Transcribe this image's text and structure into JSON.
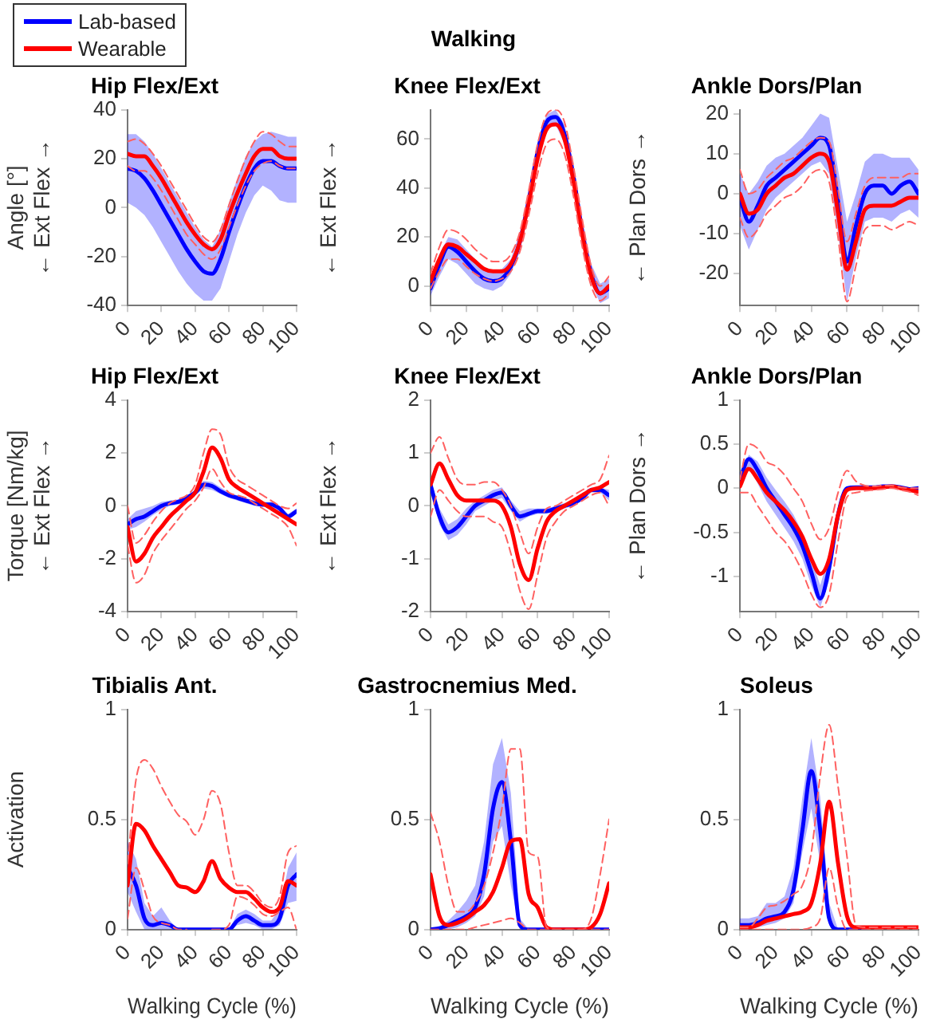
{
  "chart_data": [
    {
      "type": "line",
      "title": "Hip Flex/Ext",
      "ylabel": "Angle [°]\n← Ext Flex →",
      "x": [
        0,
        5,
        10,
        15,
        20,
        25,
        30,
        35,
        40,
        45,
        50,
        55,
        60,
        65,
        70,
        75,
        80,
        85,
        90,
        95,
        100
      ],
      "xlim": [
        0,
        100
      ],
      "xticks": [
        0,
        20,
        40,
        60,
        80,
        100
      ],
      "ylim": [
        -40,
        40
      ],
      "yticks": [
        -40,
        -20,
        0,
        20,
        40
      ],
      "legend": "top left",
      "marker": "none",
      "series": [
        {
          "name": "Lab-based",
          "color": "#0000ff",
          "values": [
            16,
            15,
            12,
            7,
            1,
            -5,
            -11,
            -17,
            -22,
            -26,
            -27,
            -21,
            -10,
            0,
            9,
            16,
            19,
            19,
            17,
            16,
            16
          ],
          "lower": [
            2,
            0,
            -3,
            -8,
            -14,
            -20,
            -26,
            -31,
            -35,
            -38,
            -38,
            -33,
            -22,
            -11,
            -2,
            5,
            9,
            7,
            3,
            2,
            2
          ],
          "upper": [
            30,
            30,
            27,
            22,
            16,
            10,
            4,
            -2,
            -8,
            -13,
            -16,
            -9,
            2,
            12,
            21,
            27,
            30,
            31,
            30,
            29,
            29
          ]
        },
        {
          "name": "Wearable",
          "color": "#ff0000",
          "values": [
            22,
            21,
            21,
            17,
            12,
            6,
            0,
            -6,
            -11,
            -15,
            -17,
            -13,
            -3,
            6,
            14,
            21,
            24,
            24,
            21,
            20,
            20
          ]
        },
        {
          "color": "#ff6060",
          "line_style": "dashed",
          "values": [
            27,
            28,
            26,
            22,
            17,
            11,
            5,
            -1,
            -7,
            -12,
            -14,
            -9,
            1,
            11,
            20,
            27,
            31,
            30,
            27,
            25,
            25
          ]
        },
        {
          "color": "#ff6060",
          "line_style": "dashed",
          "values": [
            17,
            15,
            15,
            12,
            7,
            1,
            -5,
            -11,
            -15,
            -19,
            -21,
            -17,
            -8,
            1,
            9,
            15,
            18,
            19,
            17,
            16,
            16
          ]
        }
      ]
    },
    {
      "type": "line",
      "title": "Knee Flex/Ext",
      "ylabel": "← Ext Flex →",
      "annotations": [
        "Walking"
      ],
      "x": [
        0,
        5,
        10,
        15,
        20,
        25,
        30,
        35,
        40,
        45,
        50,
        55,
        60,
        65,
        70,
        75,
        80,
        85,
        90,
        95,
        100
      ],
      "xlim": [
        0,
        100
      ],
      "xticks": [
        0,
        20,
        40,
        60,
        80,
        100
      ],
      "ylim": [
        -8,
        72
      ],
      "yticks": [
        0,
        20,
        40,
        60
      ],
      "marker": "none",
      "series": [
        {
          "color": "#0000ff",
          "values": [
            -1,
            9,
            16,
            14,
            10,
            6,
            3,
            2,
            3,
            8,
            18,
            35,
            55,
            67,
            69,
            62,
            45,
            22,
            5,
            -3,
            -1
          ],
          "lower": [
            -4,
            4,
            11,
            9,
            5,
            1,
            -1,
            -2,
            0,
            5,
            14,
            31,
            51,
            64,
            66,
            58,
            40,
            17,
            1,
            -7,
            -5
          ],
          "upper": [
            3,
            13,
            20,
            19,
            15,
            11,
            7,
            6,
            7,
            11,
            22,
            39,
            59,
            70,
            72,
            66,
            50,
            27,
            9,
            1,
            3
          ]
        },
        {
          "color": "#ff0000",
          "values": [
            2,
            11,
            17,
            16,
            13,
            10,
            7,
            6,
            6,
            9,
            18,
            34,
            52,
            64,
            66,
            60,
            43,
            21,
            4,
            -3,
            0
          ]
        },
        {
          "color": "#ff6060",
          "line_style": "dashed",
          "values": [
            5,
            16,
            23,
            22,
            19,
            15,
            12,
            10,
            10,
            13,
            22,
            39,
            58,
            70,
            72,
            67,
            49,
            27,
            8,
            0,
            4
          ]
        },
        {
          "color": "#ff6060",
          "line_style": "dashed",
          "values": [
            -1,
            6,
            11,
            11,
            8,
            5,
            3,
            2,
            3,
            6,
            14,
            29,
            46,
            58,
            60,
            54,
            37,
            16,
            0,
            -6,
            -3
          ]
        }
      ]
    },
    {
      "type": "line",
      "title": "Ankle Dors/Plan",
      "ylabel": "← Plan Dors →",
      "x": [
        0,
        5,
        10,
        15,
        20,
        25,
        30,
        35,
        40,
        45,
        50,
        55,
        60,
        65,
        70,
        75,
        80,
        85,
        90,
        95,
        100
      ],
      "xlim": [
        0,
        100
      ],
      "xticks": [
        0,
        20,
        40,
        60,
        80,
        100
      ],
      "ylim": [
        -28,
        21
      ],
      "yticks": [
        -20,
        -10,
        0,
        10,
        20
      ],
      "marker": "none",
      "series": [
        {
          "color": "#0000ff",
          "values": [
            -1,
            -7,
            -3,
            2,
            4,
            6,
            8,
            10,
            12,
            14,
            12,
            -2,
            -17,
            -8,
            0,
            2,
            2,
            0,
            2,
            3,
            0
          ],
          "lower": [
            -8,
            -14,
            -9,
            -4,
            -1,
            1,
            3,
            5,
            7,
            8,
            5,
            -10,
            -27,
            -16,
            -7,
            -6,
            -6,
            -7,
            -5,
            -4,
            -6
          ],
          "upper": [
            5,
            0,
            3,
            7,
            9,
            10,
            12,
            14,
            17,
            20,
            19,
            6,
            -7,
            0,
            8,
            10,
            10,
            9,
            9,
            9,
            6
          ]
        },
        {
          "color": "#ff0000",
          "values": [
            0,
            -5,
            -4,
            0,
            2,
            4,
            5,
            7,
            9,
            10,
            8,
            -5,
            -19,
            -12,
            -4,
            -3,
            -3,
            -3,
            -2,
            -1,
            -1
          ]
        },
        {
          "color": "#ff6060",
          "line_style": "dashed",
          "values": [
            6,
            0,
            1,
            4,
            6,
            8,
            9,
            11,
            13,
            14,
            13,
            1,
            -12,
            -5,
            2,
            4,
            4,
            4,
            4,
            5,
            5
          ]
        },
        {
          "color": "#ff6060",
          "line_style": "dashed",
          "values": [
            -6,
            -11,
            -9,
            -5,
            -3,
            -1,
            0,
            2,
            5,
            6,
            3,
            -11,
            -27,
            -18,
            -9,
            -8,
            -8,
            -9,
            -8,
            -7,
            -8
          ]
        }
      ]
    },
    {
      "type": "line",
      "title": "Hip Flex/Ext",
      "ylabel": "Torque [Nm/kg]\n← Ext Flex →",
      "x": [
        0,
        5,
        10,
        15,
        20,
        25,
        30,
        35,
        40,
        45,
        50,
        55,
        60,
        65,
        70,
        75,
        80,
        85,
        90,
        95,
        100
      ],
      "xlim": [
        0,
        100
      ],
      "xticks": [
        0,
        20,
        40,
        60,
        80,
        100
      ],
      "ylim": [
        -4,
        4
      ],
      "yticks": [
        -4,
        -2,
        0,
        2,
        4
      ],
      "marker": "none",
      "series": [
        {
          "color": "#0000ff",
          "values": [
            -0.7,
            -0.5,
            -0.4,
            -0.2,
            0,
            0.1,
            0.15,
            0.3,
            0.5,
            0.8,
            0.75,
            0.55,
            0.4,
            0.3,
            0.2,
            0.1,
            0.05,
            0.05,
            -0.1,
            -0.4,
            -0.2
          ],
          "lower": [
            -0.9,
            -0.8,
            -0.6,
            -0.35,
            -0.15,
            0,
            0.05,
            0.2,
            0.4,
            0.65,
            0.6,
            0.45,
            0.3,
            0.2,
            0.1,
            0,
            -0.05,
            -0.05,
            -0.2,
            -0.5,
            -0.3
          ],
          "upper": [
            -0.5,
            -0.2,
            -0.1,
            0,
            0.15,
            0.2,
            0.25,
            0.4,
            0.6,
            0.95,
            0.9,
            0.7,
            0.5,
            0.4,
            0.3,
            0.2,
            0.15,
            0.15,
            0,
            -0.3,
            -0.1
          ]
        },
        {
          "color": "#ff0000",
          "values": [
            -0.8,
            -2.1,
            -1.8,
            -1.2,
            -0.8,
            -0.4,
            -0.1,
            0.2,
            0.5,
            1.3,
            2.2,
            1.8,
            1,
            0.7,
            0.5,
            0.3,
            0.1,
            -0.1,
            -0.3,
            -0.5,
            -0.7
          ]
        },
        {
          "color": "#ff6060",
          "line_style": "dashed",
          "values": [
            0,
            -1.4,
            -1.1,
            -0.6,
            -0.2,
            0.1,
            0.25,
            0.4,
            0.8,
            2,
            2.9,
            2.7,
            1.5,
            1,
            0.8,
            0.6,
            0.4,
            0.2,
            0,
            -0.1,
            0.1
          ]
        },
        {
          "color": "#ff6060",
          "line_style": "dashed",
          "values": [
            -1.5,
            -2.9,
            -2.6,
            -1.8,
            -1.3,
            -0.9,
            -0.5,
            -0.1,
            0.2,
            0.7,
            1.4,
            0.9,
            0.5,
            0.4,
            0.3,
            0.1,
            -0.1,
            -0.3,
            -0.5,
            -0.8,
            -1.5
          ]
        }
      ]
    },
    {
      "type": "line",
      "title": "Knee Flex/Ext",
      "ylabel": "← Ext Flex →",
      "x": [
        0,
        5,
        10,
        15,
        20,
        25,
        30,
        35,
        40,
        45,
        50,
        55,
        60,
        65,
        70,
        75,
        80,
        85,
        90,
        95,
        100
      ],
      "xlim": [
        0,
        100
      ],
      "xticks": [
        0,
        20,
        40,
        60,
        80,
        100
      ],
      "ylim": [
        -2,
        2
      ],
      "yticks": [
        -2,
        -1,
        0,
        1,
        2
      ],
      "marker": "none",
      "series": [
        {
          "color": "#0000ff",
          "values": [
            0.4,
            -0.2,
            -0.5,
            -0.4,
            -0.2,
            0,
            0.1,
            0.2,
            0.25,
            0,
            -0.2,
            -0.15,
            -0.1,
            -0.1,
            -0.05,
            0,
            0.05,
            0.15,
            0.3,
            0.3,
            0.2
          ],
          "lower": [
            0.3,
            -0.35,
            -0.65,
            -0.55,
            -0.35,
            -0.1,
            0,
            0.1,
            0.15,
            -0.1,
            -0.3,
            -0.2,
            -0.15,
            -0.15,
            -0.1,
            -0.05,
            0,
            0.1,
            0.25,
            0.25,
            0.1
          ],
          "upper": [
            0.5,
            -0.05,
            -0.35,
            -0.25,
            -0.05,
            0.1,
            0.2,
            0.3,
            0.35,
            0.1,
            -0.1,
            -0.05,
            -0.05,
            -0.05,
            0,
            0.05,
            0.1,
            0.2,
            0.35,
            0.35,
            0.3
          ]
        },
        {
          "color": "#ff0000",
          "values": [
            0.4,
            0.8,
            0.5,
            0.2,
            0.1,
            0.1,
            0.1,
            0.1,
            0,
            -0.4,
            -1.1,
            -1.4,
            -0.8,
            -0.3,
            -0.1,
            0,
            0.1,
            0.2,
            0.3,
            0.35,
            0.45
          ]
        },
        {
          "color": "#ff6060",
          "line_style": "dashed",
          "values": [
            1,
            1.3,
            0.9,
            0.5,
            0.4,
            0.4,
            0.45,
            0.45,
            0.3,
            0,
            -0.5,
            -0.9,
            -0.4,
            -0.05,
            0,
            0.1,
            0.2,
            0.3,
            0.4,
            0.5,
            0.95
          ]
        },
        {
          "color": "#ff6060",
          "line_style": "dashed",
          "values": [
            -0.2,
            0.3,
            0.1,
            -0.1,
            -0.2,
            -0.2,
            -0.2,
            -0.3,
            -0.4,
            -0.9,
            -1.6,
            -1.95,
            -1.3,
            -0.6,
            -0.3,
            -0.1,
            0,
            0.1,
            0.2,
            0.25,
            0
          ]
        }
      ]
    },
    {
      "type": "line",
      "title": "Ankle Dors/Plan",
      "ylabel": "← Plan Dors →",
      "x": [
        0,
        5,
        10,
        15,
        20,
        25,
        30,
        35,
        40,
        45,
        50,
        55,
        60,
        65,
        70,
        75,
        80,
        85,
        90,
        95,
        100
      ],
      "xlim": [
        0,
        100
      ],
      "xticks": [
        0,
        20,
        40,
        60,
        80,
        100
      ],
      "ylim": [
        -1.4,
        1
      ],
      "yticks": [
        -1,
        -0.5,
        0,
        0.5,
        1
      ],
      "marker": "none",
      "series": [
        {
          "color": "#0000ff",
          "values": [
            0.1,
            0.33,
            0.2,
            0,
            -0.15,
            -0.3,
            -0.45,
            -0.65,
            -0.95,
            -1.25,
            -0.9,
            -0.3,
            0,
            0.01,
            0.01,
            0.01,
            0.02,
            0.02,
            0.01,
            -0.01,
            0
          ],
          "lower": [
            0.05,
            0.25,
            0.05,
            -0.15,
            -0.3,
            -0.45,
            -0.6,
            -0.8,
            -1.1,
            -1.35,
            -1.05,
            -0.4,
            -0.02,
            0,
            0,
            0,
            0.01,
            0.01,
            0,
            -0.02,
            -0.02
          ],
          "upper": [
            0.15,
            0.38,
            0.3,
            0.12,
            -0.02,
            -0.15,
            -0.3,
            -0.5,
            -0.8,
            -1.1,
            -0.75,
            -0.2,
            0.02,
            0.02,
            0.02,
            0.02,
            0.03,
            0.03,
            0.02,
            0,
            0.02
          ]
        },
        {
          "color": "#ff0000",
          "values": [
            0.02,
            0.22,
            0.1,
            -0.05,
            -0.15,
            -0.25,
            -0.38,
            -0.55,
            -0.8,
            -0.97,
            -0.8,
            -0.3,
            -0.02,
            0,
            0,
            0,
            0.01,
            0.02,
            0,
            -0.02,
            -0.04
          ]
        },
        {
          "color": "#ff6060",
          "line_style": "dashed",
          "values": [
            0.1,
            0.5,
            0.45,
            0.3,
            0.25,
            0.15,
            0,
            -0.15,
            -0.4,
            -0.58,
            -0.45,
            -0.05,
            0.2,
            0.08,
            0.03,
            0.02,
            0.03,
            0.03,
            0.01,
            0,
            0
          ]
        },
        {
          "color": "#ff6060",
          "line_style": "dashed",
          "values": [
            -0.05,
            -0.05,
            -0.2,
            -0.35,
            -0.5,
            -0.6,
            -0.75,
            -0.95,
            -1.2,
            -1.35,
            -1.2,
            -0.6,
            -0.1,
            -0.05,
            -0.03,
            -0.02,
            -0.01,
            0,
            -0.02,
            -0.04,
            -0.08
          ]
        }
      ]
    },
    {
      "type": "line",
      "title": "Tibialis Ant.",
      "ylabel": "Activation",
      "xlabel": "Walking Cycle (%)",
      "x": [
        0,
        5,
        10,
        15,
        20,
        25,
        30,
        35,
        40,
        45,
        50,
        55,
        60,
        65,
        70,
        75,
        80,
        85,
        90,
        95,
        100
      ],
      "xlim": [
        0,
        100
      ],
      "xticks": [
        0,
        20,
        40,
        60,
        80,
        100
      ],
      "ylim": [
        0,
        1
      ],
      "yticks": [
        0,
        0.5,
        1
      ],
      "marker": "none",
      "series": [
        {
          "color": "#0000ff",
          "values": [
            0.28,
            0.2,
            0.05,
            0.02,
            0.03,
            0.02,
            0,
            0,
            0,
            0,
            0,
            0,
            0,
            0.04,
            0.06,
            0.04,
            0.02,
            0.02,
            0.05,
            0.2,
            0.25
          ],
          "lower": [
            0.17,
            0.08,
            0,
            0,
            0,
            0,
            0,
            0,
            0,
            0,
            0,
            0,
            0,
            0.02,
            0.03,
            0.02,
            0,
            0,
            0.02,
            0.12,
            0.13
          ],
          "upper": [
            0.4,
            0.32,
            0.12,
            0.06,
            0.1,
            0.04,
            0,
            0,
            0,
            0,
            0,
            0,
            0,
            0.07,
            0.09,
            0.07,
            0.04,
            0.04,
            0.09,
            0.28,
            0.35
          ]
        },
        {
          "color": "#ff0000",
          "values": [
            0.2,
            0.48,
            0.45,
            0.38,
            0.32,
            0.26,
            0.2,
            0.19,
            0.17,
            0.22,
            0.31,
            0.23,
            0.19,
            0.17,
            0.17,
            0.14,
            0.1,
            0.08,
            0.1,
            0.22,
            0.2
          ]
        },
        {
          "color": "#ff6060",
          "line_style": "dashed",
          "values": [
            0.3,
            0.68,
            0.77,
            0.73,
            0.65,
            0.58,
            0.52,
            0.49,
            0.43,
            0.5,
            0.63,
            0.57,
            0.35,
            0.2,
            0.2,
            0.17,
            0.12,
            0.1,
            0.15,
            0.35,
            0.38
          ]
        },
        {
          "color": "#ff6060",
          "line_style": "dashed",
          "values": [
            0.05,
            0.28,
            0.18,
            0.06,
            0.03,
            0.02,
            0,
            0,
            null,
            null,
            0,
            0,
            0.02,
            0.15,
            0.14,
            0.11,
            0.07,
            0.06,
            0.08,
            0.1,
            0
          ]
        }
      ]
    },
    {
      "type": "line",
      "title": "Gastrocnemius Med.",
      "xlabel": "Walking Cycle (%)",
      "x": [
        0,
        5,
        10,
        15,
        20,
        25,
        30,
        35,
        40,
        45,
        50,
        55,
        60,
        65,
        70,
        75,
        80,
        85,
        90,
        95,
        100
      ],
      "xlim": [
        0,
        100
      ],
      "xticks": [
        0,
        20,
        40,
        60,
        80,
        100
      ],
      "ylim": [
        0,
        1
      ],
      "yticks": [
        0,
        0.5,
        1
      ],
      "marker": "none",
      "series": [
        {
          "color": "#0000ff",
          "values": [
            0,
            0.005,
            0.02,
            0.04,
            0.06,
            0.1,
            0.25,
            0.55,
            0.67,
            0.4,
            0.02,
            0,
            0,
            0,
            0,
            0,
            0,
            0,
            0,
            0,
            0
          ],
          "lower": [
            0,
            0,
            0,
            0.01,
            0.03,
            0.06,
            0.15,
            0.4,
            0.47,
            0.2,
            0,
            0,
            0,
            0,
            0,
            0,
            0,
            0,
            0,
            0,
            0
          ],
          "upper": [
            0,
            0.01,
            0.04,
            0.08,
            0.13,
            0.2,
            0.4,
            0.75,
            0.87,
            0.62,
            0.05,
            0,
            0,
            0,
            0,
            0,
            0,
            0,
            0,
            0,
            0
          ]
        },
        {
          "color": "#ff0000",
          "values": [
            0.25,
            0.06,
            0.02,
            0.03,
            0.05,
            0.08,
            0.11,
            0.17,
            0.28,
            0.4,
            0.41,
            0.16,
            0.1,
            0.01,
            0,
            0,
            0,
            0,
            0.01,
            0.07,
            0.21
          ]
        },
        {
          "color": "#ff6060",
          "line_style": "dashed",
          "values": [
            0.53,
            0.4,
            0.2,
            0.08,
            0.08,
            0.12,
            0.2,
            0.35,
            0.55,
            0.82,
            0.82,
            0.35,
            0.33,
            0.01,
            0,
            0,
            0,
            0,
            0.05,
            0.25,
            0.5
          ]
        },
        {
          "color": "#ff6060",
          "line_style": "dashed",
          "values": [
            0,
            0,
            0,
            0,
            0,
            0.01,
            0.02,
            0.03,
            0.04,
            0.05,
            0.03,
            0,
            0,
            0,
            0,
            0,
            0,
            0,
            0,
            0,
            0
          ]
        }
      ]
    },
    {
      "type": "line",
      "title": "Soleus",
      "xlabel": "Walking Cycle (%)",
      "x": [
        0,
        5,
        10,
        15,
        20,
        25,
        30,
        35,
        40,
        45,
        50,
        55,
        60,
        65,
        70,
        75,
        80,
        85,
        90,
        95,
        100
      ],
      "xlim": [
        0,
        100
      ],
      "xticks": [
        0,
        20,
        40,
        60,
        80,
        100
      ],
      "ylim": [
        0,
        1
      ],
      "yticks": [
        0,
        0.5,
        1
      ],
      "marker": "none",
      "series": [
        {
          "color": "#0000ff",
          "values": [
            0.02,
            0.02,
            0.03,
            0.05,
            0.06,
            0.08,
            0.18,
            0.45,
            0.72,
            0.45,
            0.05,
            0,
            0,
            0,
            0,
            null,
            null,
            null,
            null,
            null,
            null
          ],
          "lower": [
            0,
            0,
            0.01,
            0.02,
            0.03,
            0.05,
            0.12,
            0.35,
            0.55,
            0.3,
            0.02,
            0,
            0,
            0,
            0,
            0,
            0,
            0,
            0,
            0,
            0
          ],
          "upper": [
            0.05,
            0.05,
            0.06,
            0.12,
            0.12,
            0.15,
            0.28,
            0.6,
            0.87,
            0.6,
            0.12,
            0,
            0,
            0,
            0,
            0,
            0,
            0,
            0,
            0,
            0
          ]
        },
        {
          "color": "#ff0000",
          "values": [
            0.01,
            0.01,
            0.02,
            0.04,
            0.05,
            0.06,
            0.07,
            0.08,
            0.12,
            0.3,
            0.58,
            0.3,
            0.06,
            0.01,
            0.01,
            0.01,
            0.01,
            0.01,
            0.01,
            0.01,
            0.01
          ]
        },
        {
          "color": "#ff6060",
          "line_style": "dashed",
          "values": [
            0.01,
            0.01,
            0.05,
            0.1,
            0.11,
            0.13,
            0.16,
            0.2,
            0.35,
            0.7,
            0.93,
            0.65,
            0.33,
            0.02,
            0.01,
            0.01,
            0.01,
            0.01,
            0.01,
            0.01,
            0.01
          ]
        },
        {
          "color": "#ff6060",
          "line_style": "dashed",
          "values": [
            0,
            0,
            0,
            0,
            0,
            0,
            0,
            0,
            0.01,
            0.05,
            0.28,
            0.1,
            0,
            0,
            0,
            0,
            0,
            0,
            0,
            0,
            0
          ]
        }
      ]
    }
  ]
}
